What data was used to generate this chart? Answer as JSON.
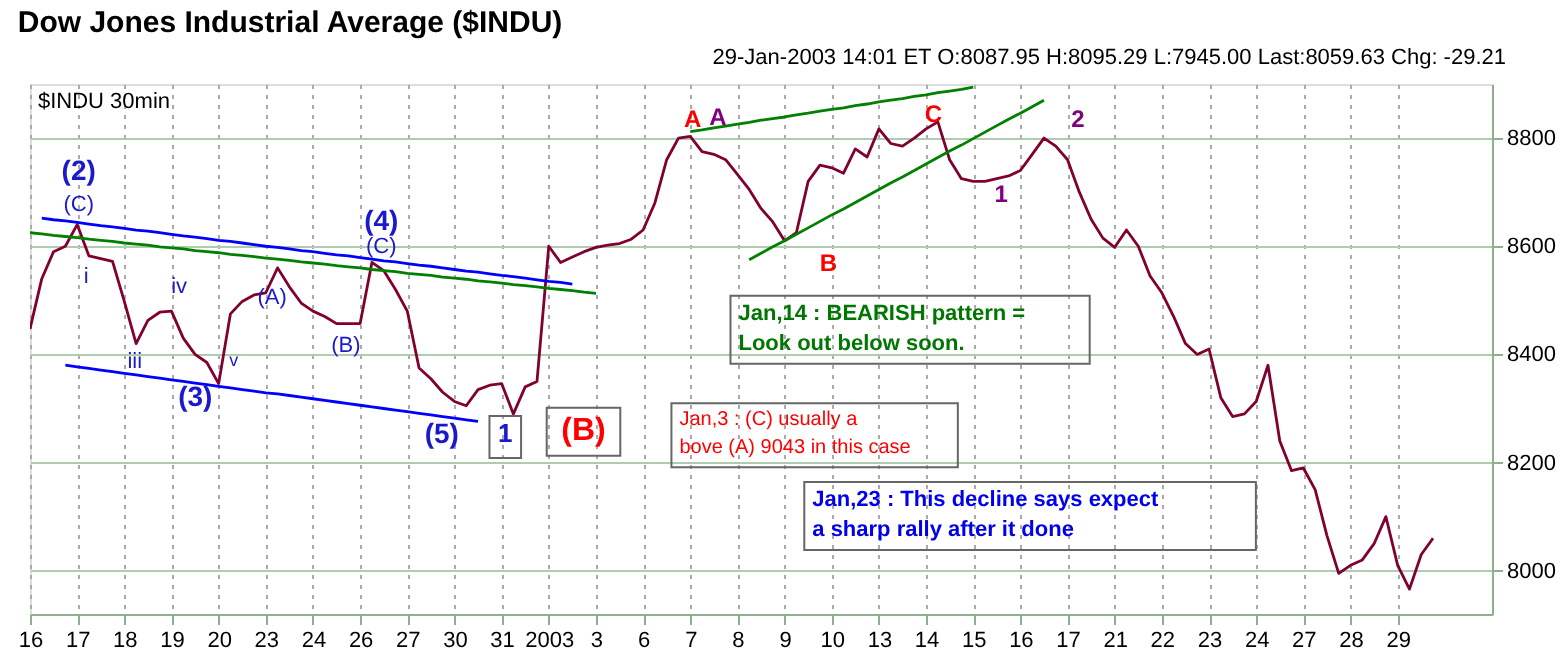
{
  "chart_data": {
    "type": "line",
    "title": "Dow Jones Industrial Average ($INDU)",
    "subtitle": "$INDU 30min",
    "categories": [
      "16",
      null,
      null,
      null,
      "17",
      null,
      null,
      null,
      "18",
      null,
      null,
      null,
      "19",
      null,
      null,
      null,
      "20",
      null,
      null,
      null,
      "23",
      null,
      null,
      null,
      "24",
      null,
      null,
      null,
      "26",
      null,
      null,
      null,
      "27",
      null,
      null,
      null,
      "30",
      null,
      null,
      null,
      "31",
      null,
      null,
      null,
      "2003",
      null,
      null,
      null,
      "3",
      null,
      null,
      null,
      "6",
      null,
      null,
      null,
      "7",
      null,
      null,
      null,
      "8",
      null,
      null,
      null,
      "9",
      null,
      null,
      null,
      "10",
      null,
      null,
      null,
      "13",
      null,
      null,
      null,
      "14",
      null,
      null,
      null,
      "15",
      null,
      null,
      null,
      "16",
      null,
      null,
      null,
      "17",
      null,
      null,
      null,
      "21",
      null,
      null,
      null,
      "22",
      null,
      null,
      null,
      "23",
      null,
      null,
      null,
      "24",
      null,
      null,
      null,
      "27",
      null,
      null,
      null,
      "28",
      null,
      null,
      null,
      "29",
      null,
      null,
      null
    ],
    "ylim": [
      7920,
      8900
    ],
    "yticks": [
      8000,
      8200,
      8400,
      8600,
      8800
    ],
    "grid": true,
    "series": [
      {
        "color": "#800030",
        "values": [
          8447,
          8540,
          8590,
          8600,
          8640,
          8582,
          8577,
          8572,
          8498,
          8420,
          8463,
          8478,
          8480,
          8430,
          8400,
          8385,
          8346,
          8475,
          8498,
          8510,
          8514,
          8560,
          8525,
          8495,
          8480,
          8470,
          8457,
          8457,
          8457,
          8570,
          8555,
          8520,
          8480,
          8375,
          8355,
          8330,
          8313,
          8305,
          8335,
          8343,
          8346,
          8290,
          8340,
          8350,
          8600,
          8570,
          8580,
          8590,
          8598,
          8602,
          8605,
          8613,
          8630,
          8680,
          8760,
          8800,
          8803,
          8775,
          8770,
          8760,
          8733,
          8705,
          8670,
          8645,
          8610,
          8625,
          8720,
          8750,
          8745,
          8735,
          8780,
          8765,
          8817,
          8790,
          8785,
          8800,
          8817,
          8830,
          8760,
          8725,
          8720,
          8720,
          8725,
          8730,
          8740,
          8770,
          8800,
          8785,
          8760,
          8700,
          8650,
          8615,
          8598,
          8630,
          8600,
          8545,
          8514,
          8470,
          8420,
          8400,
          8410,
          8320,
          8285,
          8290,
          8313,
          8380,
          8240,
          8185,
          8190,
          8150,
          8065,
          7995,
          8010,
          8020,
          8050,
          8100,
          8010,
          7966,
          8030,
          8060
        ]
      },
      {
        "color": "#0000ff",
        "values": [
          null,
          8652,
          8649,
          8647,
          8644,
          8641,
          8638,
          8636,
          8633,
          8630,
          8628,
          8625,
          8622,
          8619,
          8617,
          8614,
          8611,
          8609,
          8606,
          8603,
          8600,
          8598,
          8595,
          8592,
          8590,
          8587,
          8584,
          8582,
          8579,
          8576,
          8573,
          8571,
          8568,
          8565,
          8563,
          8560,
          8557,
          8554,
          8552,
          8549,
          8546,
          8544,
          8541,
          8538,
          8535,
          8533,
          8530,
          null,
          null,
          null,
          null,
          null,
          null,
          null,
          null,
          null,
          null,
          null,
          null,
          null,
          null,
          null,
          null,
          null,
          null,
          null,
          null,
          null,
          null,
          null,
          null,
          null,
          null,
          null,
          null,
          null,
          null,
          null,
          null,
          null,
          null,
          null,
          null,
          null,
          null,
          null,
          null,
          null,
          null,
          null,
          null,
          null,
          null,
          null,
          null,
          null,
          null,
          null,
          null,
          null,
          null,
          null,
          null,
          null,
          null,
          null,
          null,
          null,
          null,
          null,
          null,
          null,
          null,
          null,
          null,
          null,
          null,
          null,
          null,
          null
        ]
      },
      {
        "color": "#0000ff",
        "values": [
          null,
          null,
          null,
          8380,
          8377,
          8374,
          8371,
          8368,
          8365,
          8362,
          8359,
          8356,
          8353,
          8350,
          8347,
          8344,
          8341,
          8338,
          8335,
          8332,
          8329,
          8327,
          8324,
          8321,
          8318,
          8315,
          8312,
          8309,
          8306,
          8303,
          8300,
          8297,
          8294,
          8291,
          8288,
          8285,
          8282,
          8279,
          8276,
          null,
          null,
          null,
          null,
          null,
          null,
          null,
          null,
          null,
          null,
          null,
          null,
          null,
          null,
          null,
          null,
          null,
          null,
          null,
          null,
          null,
          null,
          null,
          null,
          null,
          null,
          null,
          null,
          null,
          null,
          null,
          null,
          null,
          null,
          null,
          null,
          null,
          null,
          null,
          null,
          null,
          null,
          null,
          null,
          null,
          null,
          null,
          null,
          null,
          null,
          null,
          null,
          null,
          null,
          null,
          null,
          null,
          null,
          null,
          null,
          null,
          null,
          null,
          null,
          null,
          null,
          null,
          null,
          null,
          null,
          null,
          null,
          null,
          null,
          null,
          null,
          null,
          null,
          null,
          null,
          null
        ]
      },
      {
        "color": "#008000",
        "values": [
          8625,
          8623,
          8620,
          8618,
          8616,
          8613,
          8611,
          8609,
          8606,
          8604,
          8602,
          8599,
          8597,
          8595,
          8592,
          8590,
          8588,
          8585,
          8583,
          8581,
          8578,
          8576,
          8574,
          8571,
          8569,
          8567,
          8564,
          8562,
          8560,
          8557,
          8555,
          8553,
          8550,
          8548,
          8546,
          8543,
          8541,
          8539,
          8536,
          8534,
          8532,
          8529,
          8527,
          8525,
          8522,
          8520,
          8518,
          8515,
          8513,
          null,
          null,
          null,
          null,
          null,
          null,
          null,
          null,
          null,
          null,
          null,
          null,
          null,
          null,
          null,
          null,
          null,
          null,
          null,
          null,
          null,
          null,
          null,
          null,
          null,
          null,
          null,
          null,
          null,
          null,
          null,
          null,
          null,
          null,
          null,
          null,
          null,
          null,
          null,
          null,
          null,
          null,
          null,
          null,
          null,
          null,
          null,
          null,
          null,
          null,
          null,
          null,
          null,
          null,
          null,
          null,
          null,
          null,
          null,
          null,
          null,
          null,
          null,
          null,
          null,
          null,
          null,
          null,
          null,
          null,
          null
        ]
      },
      {
        "color": "#008000",
        "values": [
          null,
          null,
          null,
          null,
          null,
          null,
          null,
          null,
          null,
          null,
          null,
          null,
          null,
          null,
          null,
          null,
          null,
          null,
          null,
          null,
          null,
          null,
          null,
          null,
          null,
          null,
          null,
          null,
          null,
          null,
          null,
          null,
          null,
          null,
          null,
          null,
          null,
          null,
          null,
          null,
          null,
          null,
          null,
          null,
          null,
          null,
          null,
          null,
          null,
          null,
          null,
          null,
          null,
          null,
          null,
          null,
          8812,
          8815,
          8819,
          8822,
          8826,
          8829,
          8833,
          8836,
          8839,
          8843,
          8846,
          8850,
          8853,
          8856,
          8860,
          8863,
          8867,
          8870,
          8873,
          8877,
          8880,
          8884,
          8887,
          8890,
          8894,
          null,
          null,
          null,
          null,
          null,
          null,
          null,
          null,
          null,
          null,
          null,
          null,
          null,
          null,
          null,
          null,
          null,
          null,
          null,
          null,
          null,
          null,
          null,
          null,
          null,
          null,
          null,
          null,
          null,
          null,
          null,
          null,
          null,
          null,
          null,
          null,
          null,
          null,
          null
        ]
      },
      {
        "color": "#008000",
        "values": [
          null,
          null,
          null,
          null,
          null,
          null,
          null,
          null,
          null,
          null,
          null,
          null,
          null,
          null,
          null,
          null,
          null,
          null,
          null,
          null,
          null,
          null,
          null,
          null,
          null,
          null,
          null,
          null,
          null,
          null,
          null,
          null,
          null,
          null,
          null,
          null,
          null,
          null,
          null,
          null,
          null,
          null,
          null,
          null,
          null,
          null,
          null,
          null,
          null,
          null,
          null,
          null,
          null,
          null,
          null,
          null,
          null,
          null,
          null,
          null,
          null,
          8575,
          8587,
          8599,
          8610,
          8622,
          8634,
          8646,
          8658,
          8669,
          8681,
          8693,
          8705,
          8717,
          8728,
          8740,
          8752,
          8764,
          8776,
          8787,
          8799,
          8811,
          8823,
          8835,
          8846,
          8858,
          8870,
          null,
          null,
          null,
          null,
          null,
          null,
          null,
          null,
          null,
          null,
          null,
          null,
          null,
          null,
          null,
          null,
          null,
          null,
          null,
          null,
          null,
          null,
          null,
          null,
          null,
          null,
          null,
          null,
          null,
          null,
          null,
          null,
          null
        ]
      }
    ],
    "annotations": [
      "(2)",
      "(C)",
      "i",
      "iii",
      "iv",
      "(3)",
      "v",
      "(A)",
      "(B)",
      "(4)",
      "(C)",
      "(5)",
      "1",
      "(B)",
      "A",
      "A",
      "B",
      "C",
      "1",
      "2",
      "29-Jan-2003 14:01 ET O:8087.95 H:8095.29 L:7945.00 Last:8059.63 Chg: -29.21",
      "Jan,14 : BEARISH pattern =\nLook out below soon.",
      "Jan,3 : (C) usually a\nbove (A) 9043 in this case",
      "Jan,23 : This decline says expect\na sharp rally after it done"
    ]
  }
}
